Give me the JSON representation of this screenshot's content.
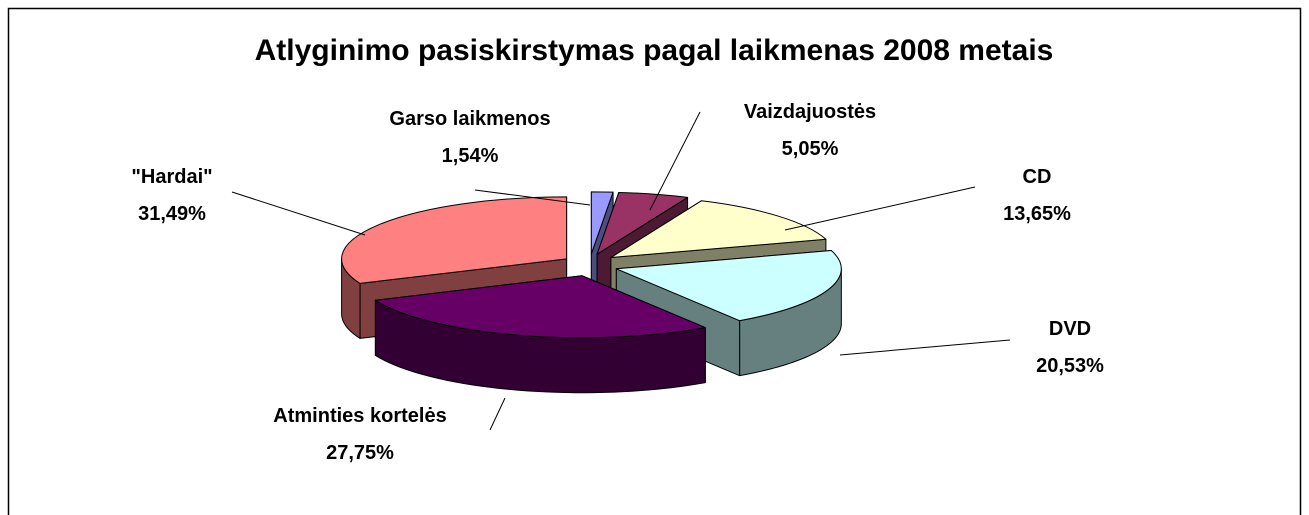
{
  "chart_data": {
    "type": "pie3d",
    "title": "Atlyginimo pasiskirstymas pagal laikmenas 2008 metais",
    "categories": [
      "Garso laikmenos",
      "Vaizdajuostės",
      "CD",
      "DVD",
      "Atminties kortelės",
      "\"Hardai\""
    ],
    "values": [
      1.54,
      5.05,
      13.65,
      20.53,
      27.75,
      31.49
    ],
    "value_labels": [
      "1,54%",
      "5,05%",
      "13,65%",
      "20,53%",
      "27,75%",
      "31,49%"
    ],
    "colors": [
      "#9999ff",
      "#993366",
      "#ffffcc",
      "#ccffff",
      "#660066",
      "#ff8080"
    ]
  }
}
